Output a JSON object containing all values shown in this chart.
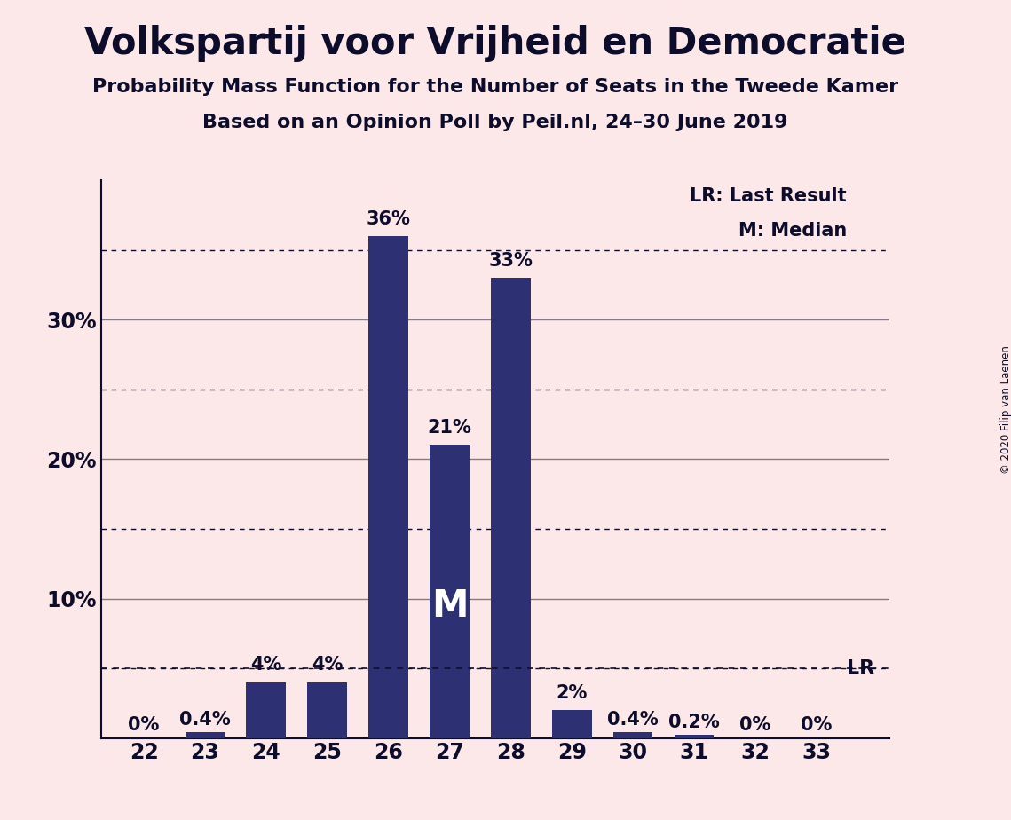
{
  "title": "Volkspartij voor Vrijheid en Democratie",
  "subtitle1": "Probability Mass Function for the Number of Seats in the Tweede Kamer",
  "subtitle2": "Based on an Opinion Poll by Peil.nl, 24–30 June 2019",
  "copyright": "© 2020 Filip van Laenen",
  "categories": [
    22,
    23,
    24,
    25,
    26,
    27,
    28,
    29,
    30,
    31,
    32,
    33
  ],
  "values": [
    0.0,
    0.4,
    4.0,
    4.0,
    36.0,
    21.0,
    33.0,
    2.0,
    0.4,
    0.2,
    0.0,
    0.0
  ],
  "bar_color": "#2d3173",
  "background_color": "#fce8e8",
  "text_color": "#0d0d2b",
  "bar_labels": [
    "0%",
    "0.4%",
    "4%",
    "4%",
    "36%",
    "21%",
    "33%",
    "2%",
    "0.4%",
    "0.2%",
    "0%",
    "0%"
  ],
  "median_seat": 27,
  "median_label": "M",
  "lr_value": 5.0,
  "lr_label": "LR",
  "legend_lr": "LR: Last Result",
  "legend_m": "M: Median",
  "ylim": [
    0,
    40
  ],
  "dotted_lines": [
    5,
    15,
    25,
    35
  ],
  "solid_lines": [
    10,
    20,
    30
  ]
}
